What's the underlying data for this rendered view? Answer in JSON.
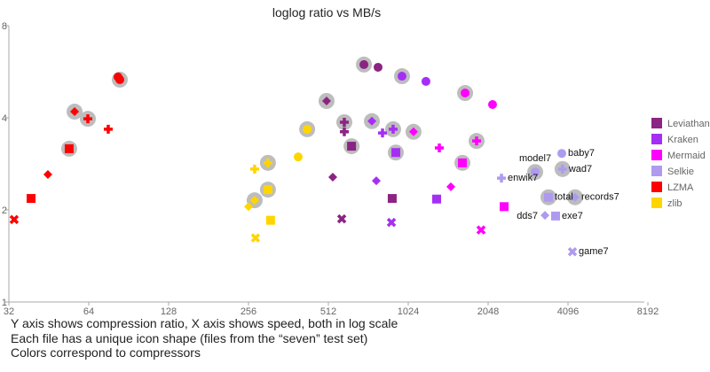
{
  "chart_data": {
    "type": "scatter",
    "title": "loglog ratio vs MB/s",
    "xscale": "log2",
    "yscale": "log2",
    "xlim": [
      32,
      8192
    ],
    "ylim": [
      1,
      8
    ],
    "x_ticks": [
      32,
      64,
      128,
      256,
      512,
      1024,
      2048,
      4096,
      8192
    ],
    "y_ticks": [
      1,
      2,
      4,
      8
    ],
    "grid": false,
    "legend_position": "right",
    "file_shapes": {
      "baby7": "circle",
      "model7": "circle-halo",
      "wad7": "plus-halo",
      "enwik7": "plus",
      "total": "square-halo",
      "records7": "diamond-halo",
      "dds7": "diamond",
      "exe7": "square",
      "game7": "x"
    },
    "series": [
      {
        "name": "Leviathan",
        "color": "#8B2483",
        "points": [
          {
            "file": "model7",
            "x": 697,
            "y": 5.97
          },
          {
            "file": "baby7",
            "x": 788,
            "y": 5.85
          },
          {
            "file": "records7",
            "x": 504,
            "y": 4.54
          },
          {
            "file": "wad7",
            "x": 588,
            "y": 3.87
          },
          {
            "file": "enwik7",
            "x": 588,
            "y": 3.6
          },
          {
            "file": "total",
            "x": 626,
            "y": 3.23
          },
          {
            "file": "dds7",
            "x": 532,
            "y": 2.56
          },
          {
            "file": "exe7",
            "x": 891,
            "y": 2.18
          },
          {
            "file": "game7",
            "x": 575,
            "y": 1.87
          }
        ]
      },
      {
        "name": "Kraken",
        "color": "#A52EF5",
        "points": [
          {
            "file": "model7",
            "x": 970,
            "y": 5.47
          },
          {
            "file": "baby7",
            "x": 1194,
            "y": 5.26
          },
          {
            "file": "records7",
            "x": 747,
            "y": 3.9
          },
          {
            "file": "wad7",
            "x": 898,
            "y": 3.67
          },
          {
            "file": "enwik7",
            "x": 819,
            "y": 3.57
          },
          {
            "file": "total",
            "x": 919,
            "y": 3.08
          },
          {
            "file": "dds7",
            "x": 776,
            "y": 2.49
          },
          {
            "file": "exe7",
            "x": 1310,
            "y": 2.17
          },
          {
            "file": "game7",
            "x": 885,
            "y": 1.82
          }
        ]
      },
      {
        "name": "Mermaid",
        "color": "#FF00FF",
        "points": [
          {
            "file": "model7",
            "x": 1677,
            "y": 4.82
          },
          {
            "file": "baby7",
            "x": 2128,
            "y": 4.42
          },
          {
            "file": "records7",
            "x": 1072,
            "y": 3.6
          },
          {
            "file": "wad7",
            "x": 1853,
            "y": 3.36
          },
          {
            "file": "enwik7",
            "x": 1341,
            "y": 3.19
          },
          {
            "file": "total",
            "x": 1638,
            "y": 2.85
          },
          {
            "file": "dds7",
            "x": 1482,
            "y": 2.38
          },
          {
            "file": "exe7",
            "x": 2353,
            "y": 2.05
          },
          {
            "file": "game7",
            "x": 1926,
            "y": 1.72
          }
        ]
      },
      {
        "name": "Selkie",
        "color": "#AE9BF0",
        "labeled": true,
        "points": [
          {
            "file": "model7",
            "x": 3081,
            "y": 2.66
          },
          {
            "file": "baby7",
            "x": 3881,
            "y": 3.06
          },
          {
            "file": "wad7",
            "x": 3906,
            "y": 2.72
          },
          {
            "file": "enwik7",
            "x": 2299,
            "y": 2.54
          },
          {
            "file": "total",
            "x": 3457,
            "y": 2.2
          },
          {
            "file": "records7",
            "x": 4355,
            "y": 2.2
          },
          {
            "file": "dds7",
            "x": 3354,
            "y": 1.92
          },
          {
            "file": "exe7",
            "x": 3677,
            "y": 1.91
          },
          {
            "file": "game7",
            "x": 4257,
            "y": 1.46
          }
        ]
      },
      {
        "name": "LZMA",
        "color": "#FF0000",
        "points": [
          {
            "file": "model7",
            "x": 83.8,
            "y": 5.33
          },
          {
            "file": "baby7",
            "x": 82.5,
            "y": 5.44
          },
          {
            "file": "records7",
            "x": 56.6,
            "y": 4.19
          },
          {
            "file": "wad7",
            "x": 63.5,
            "y": 3.97
          },
          {
            "file": "enwik7",
            "x": 75.8,
            "y": 3.67
          },
          {
            "file": "total",
            "x": 54,
            "y": 3.17
          },
          {
            "file": "dds7",
            "x": 44.9,
            "y": 2.61
          },
          {
            "file": "exe7",
            "x": 38.8,
            "y": 2.18
          },
          {
            "file": "game7",
            "x": 33.5,
            "y": 1.86
          }
        ]
      },
      {
        "name": "zlib",
        "color": "#FFD500",
        "points": [
          {
            "file": "model7",
            "x": 426,
            "y": 3.67
          },
          {
            "file": "baby7",
            "x": 394,
            "y": 2.98
          },
          {
            "file": "wad7",
            "x": 303,
            "y": 2.85
          },
          {
            "file": "enwik7",
            "x": 270,
            "y": 2.72
          },
          {
            "file": "total",
            "x": 303,
            "y": 2.33
          },
          {
            "file": "records7",
            "x": 270,
            "y": 2.15
          },
          {
            "file": "dds7",
            "x": 256,
            "y": 2.05
          },
          {
            "file": "exe7",
            "x": 310,
            "y": 1.85
          },
          {
            "file": "game7",
            "x": 272,
            "y": 1.62
          }
        ]
      }
    ],
    "notes": [
      "Y axis shows compression ratio, X axis shows speed, both in log scale",
      "Each file has a unique icon shape (files from the “seven” test set)",
      "Colors correspond to compressors"
    ]
  }
}
